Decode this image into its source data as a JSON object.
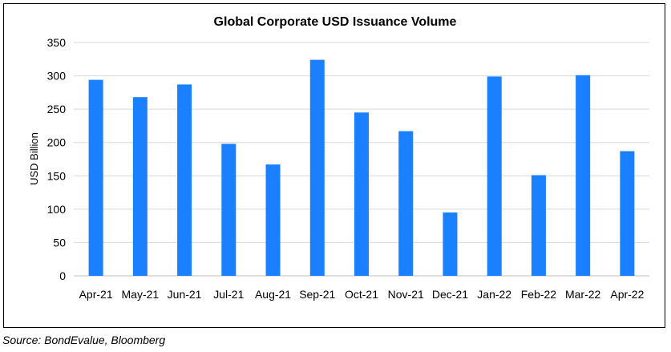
{
  "chart_data": {
    "type": "bar",
    "title": "Global Corporate USD Issuance Volume",
    "ylabel": "USD Billion",
    "xlabel": "",
    "ylim": [
      0,
      350
    ],
    "ytick_step": 50,
    "grid": true,
    "legend": "none",
    "bar_color": "#1A80FF",
    "categories": [
      "Apr-21",
      "May-21",
      "Jun-21",
      "Jul-21",
      "Aug-21",
      "Sep-21",
      "Oct-21",
      "Nov-21",
      "Dec-21",
      "Jan-22",
      "Feb-22",
      "Mar-22",
      "Apr-22"
    ],
    "values": [
      294,
      268,
      287,
      198,
      167,
      324,
      245,
      217,
      95,
      299,
      151,
      301,
      187
    ]
  },
  "source_note": "Source: BondEvalue, Bloomberg"
}
